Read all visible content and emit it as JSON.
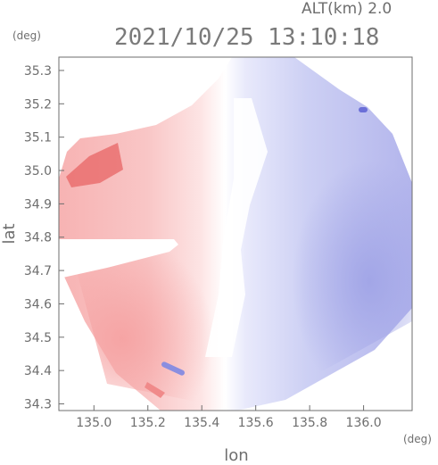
{
  "chart_data": {
    "type": "heatmap",
    "title": "2021/10/25 13:10:18",
    "subtitle": "ALT(km) 2.0",
    "xlabel": "lon",
    "ylabel": "lat",
    "x_unit": "(deg)",
    "y_unit": "(deg)",
    "xlim": [
      134.87,
      136.18
    ],
    "ylim": [
      34.28,
      35.34
    ],
    "x_ticks": [
      135.0,
      135.2,
      135.4,
      135.6,
      135.8,
      136.0
    ],
    "x_tick_labels": [
      "135.0",
      "135.2",
      "135.4",
      "135.6",
      "135.8",
      "136.0"
    ],
    "y_ticks": [
      34.3,
      34.4,
      34.5,
      34.6,
      34.7,
      34.8,
      34.9,
      35.0,
      35.1,
      35.2,
      35.3
    ],
    "y_tick_labels": [
      "34.3",
      "34.4",
      "34.5",
      "34.6",
      "34.7",
      "34.8",
      "34.9",
      "35.0",
      "35.1",
      "35.2",
      "35.3"
    ],
    "grid": false,
    "colors": {
      "positive": "#f4a6a6",
      "neutral": "#ffffff",
      "negative": "#a9abe8"
    },
    "field": {
      "description_note": "Doppler-like velocity field; red on western half, blue on eastern half",
      "regions": [
        {
          "name": "red-west",
          "sign": "positive"
        },
        {
          "name": "blue-east",
          "sign": "negative"
        }
      ]
    }
  }
}
